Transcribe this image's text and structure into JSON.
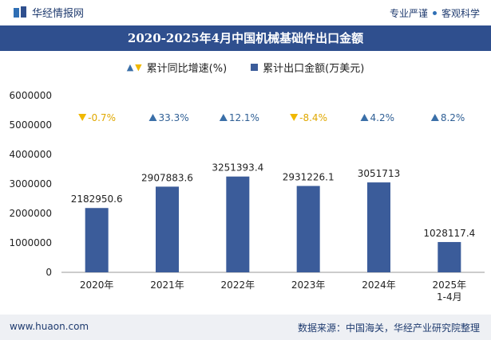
{
  "header": {
    "brand": "华经情报网",
    "tagline_left": "专业严谨",
    "tagline_right": "客观科学"
  },
  "footer": {
    "website": "www.huaon.com",
    "source": "数据来源：中国海关，华经产业研究院整理"
  },
  "colors": {
    "title_bg": "#2f4f8e",
    "bar": "#3b5c9a",
    "up": "#3a6fa8",
    "down": "#f0b800"
  },
  "chart_data": {
    "type": "bar",
    "title": "2020-2025年4月中国机械基础件出口金额",
    "categories": [
      "2020年",
      "2021年",
      "2022年",
      "2023年",
      "2024年",
      "2025年\n1-4月"
    ],
    "series": [
      {
        "name": "累计出口金额(万美元)",
        "values": [
          2182950.6,
          2907883.6,
          3251393.4,
          2931226.1,
          3051713,
          1028117.4
        ],
        "labels": [
          "2182950.6",
          "2907883.6",
          "3251393.4",
          "2931226.1",
          "3051713",
          "1028117.4"
        ]
      },
      {
        "name": "累计同比增速(%)",
        "values": [
          -0.7,
          33.3,
          12.1,
          -8.4,
          4.2,
          8.2
        ],
        "labels": [
          "-0.7%",
          "33.3%",
          "12.1%",
          "-8.4%",
          "4.2%",
          "8.2%"
        ]
      }
    ],
    "yticks": [
      "6000000",
      "5000000",
      "4000000",
      "3000000",
      "2000000",
      "1000000",
      "0"
    ],
    "ylim": [
      0,
      6000000
    ],
    "legend_position": "top-center"
  }
}
